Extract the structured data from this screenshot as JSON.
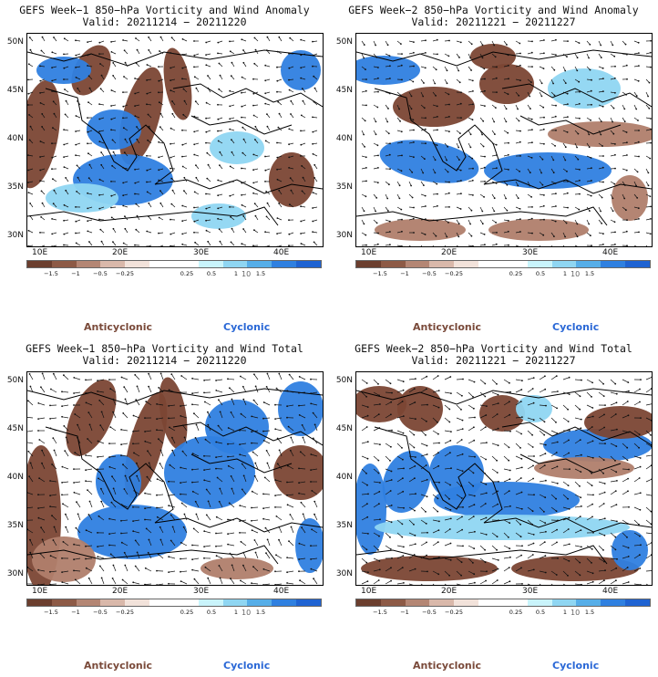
{
  "panels": [
    {
      "title": "GEFS Week−1 850−hPa Vorticity and Wind Anomaly",
      "valid": "Valid: 20211214 − 20211220"
    },
    {
      "title": "GEFS Week−2 850−hPa Vorticity and Wind Anomaly",
      "valid": "Valid: 20211221 − 20211227"
    },
    {
      "title": "GEFS Week−1 850−hPa Vorticity and Wind Total",
      "valid": "Valid: 20211214 − 20211220"
    },
    {
      "title": "GEFS Week−2 850−hPa Vorticity and Wind Total",
      "valid": "Valid: 20211221 − 20211227"
    }
  ],
  "lat_labels": [
    "50N",
    "45N",
    "40N",
    "35N",
    "30N"
  ],
  "lon_labels": [
    "10E",
    "20E",
    "30E",
    "40E"
  ],
  "colorbar": {
    "ticks": [
      "−1.5",
      "−1",
      "−0.5",
      "−0.25",
      "0.25",
      "0.5",
      "1",
      "1.5"
    ],
    "exponent": "10",
    "colors": [
      "#6b3e2e",
      "#8d5a46",
      "#b48674",
      "#d9b8aa",
      "#f2e2da",
      "#ffffff",
      "#ffffff",
      "#c9f4fb",
      "#8fd6f2",
      "#56aee8",
      "#2f80e0",
      "#1f63d2"
    ]
  },
  "legend": {
    "anticyclonic": "Anticyclonic",
    "cyclonic": "Cyclonic"
  },
  "colors": {
    "anticyclonic": "#7a4a3a",
    "cyclonic": "#2a68d6",
    "strong_brown": "#7b4634",
    "mid_brown": "#b07e6b",
    "light_blue": "#8fd6f2",
    "strong_blue": "#2f80e0"
  }
}
